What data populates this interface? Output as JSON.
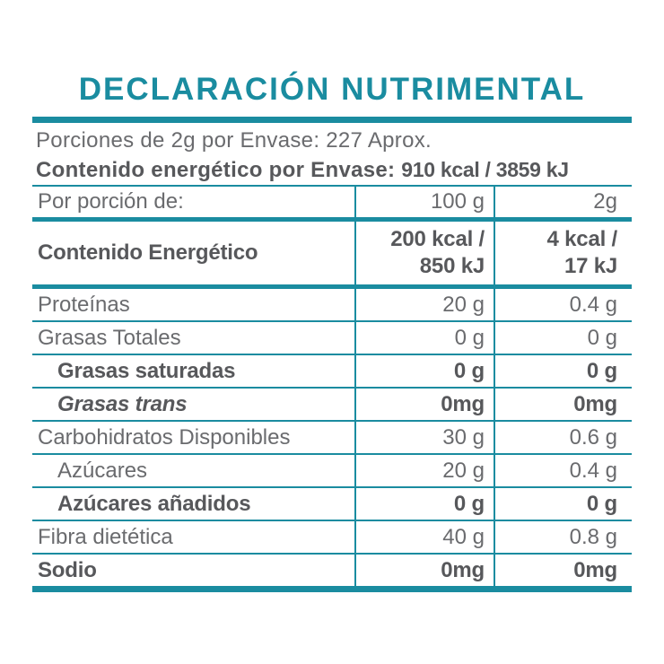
{
  "colors": {
    "accent": "#1a8ca0",
    "text_regular": "#6a6b6e",
    "text_bold": "#57585b"
  },
  "header": {
    "title": "DECLARACIÓN NUTRIMENTAL"
  },
  "summary": {
    "servings": "Porciones de 2g por Envase: 227 Aprox.",
    "energy_label": "Contenido energético por Envase:",
    "energy_value": "910 kcal / 3859 kJ"
  },
  "table": {
    "columns": {
      "label": "Por porción de:",
      "per_100g": "100 g",
      "per_serving": "2g"
    },
    "energy_row": {
      "label": "Contenido Energético",
      "per_100g": "200 kcal /\n850 kJ",
      "per_serving": "4 kcal /\n17 kJ"
    },
    "rows": [
      {
        "label": "Proteínas",
        "per_100g": "20 g",
        "per_serving": "0.4 g"
      },
      {
        "label": "Grasas Totales",
        "per_100g": "0 g",
        "per_serving": "0 g"
      },
      {
        "label": "Grasas saturadas",
        "per_100g": "0 g",
        "per_serving": "0 g"
      },
      {
        "label": "Grasas trans",
        "per_100g": "0mg",
        "per_serving": "0mg"
      },
      {
        "label": "Carbohidratos Disponibles",
        "per_100g": "30 g",
        "per_serving": "0.6 g"
      },
      {
        "label": "Azúcares",
        "per_100g": "20 g",
        "per_serving": "0.4 g"
      },
      {
        "label": "Azúcares añadidos",
        "per_100g": "0 g",
        "per_serving": "0 g"
      },
      {
        "label": "Fibra dietética",
        "per_100g": "40 g",
        "per_serving": "0.8 g"
      },
      {
        "label": "Sodio",
        "per_100g": "0mg",
        "per_serving": "0mg"
      }
    ]
  }
}
